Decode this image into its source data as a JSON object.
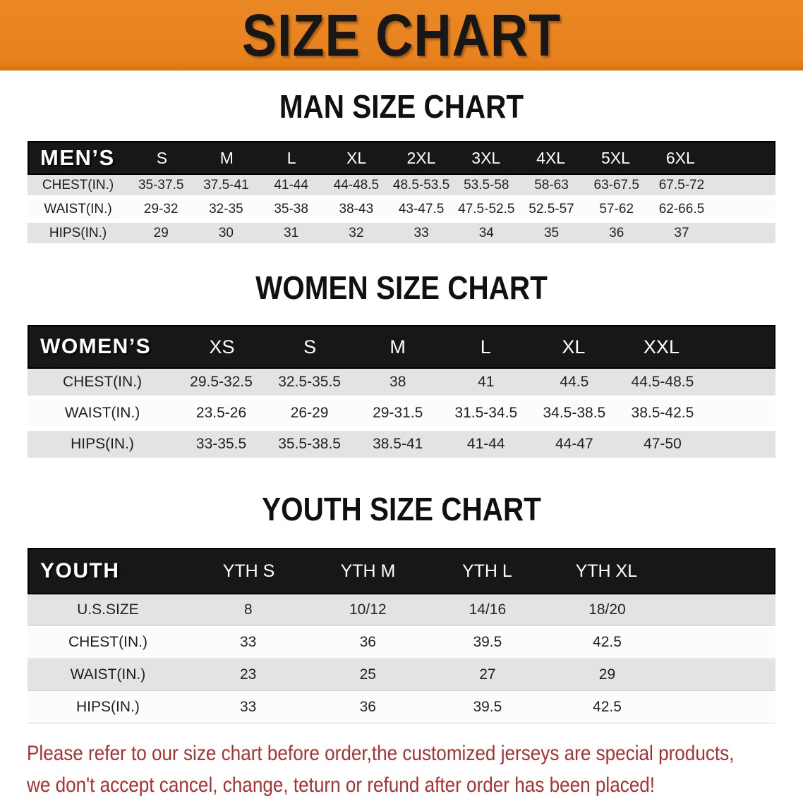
{
  "banner": {
    "title": "SIZE CHART",
    "bg_color": "#E8821F"
  },
  "sections": [
    {
      "title": "MAN SIZE CHART",
      "header_label": "MEN’S",
      "sizes": [
        "S",
        "M",
        "L",
        "XL",
        "2XL",
        "3XL",
        "4XL",
        "5XL",
        "6XL"
      ],
      "rows": [
        {
          "label": "CHEST(IN.)",
          "values": [
            "35-37.5",
            "37.5-41",
            "41-44",
            "44-48.5",
            "48.5-53.5",
            "53.5-58",
            "58-63",
            "63-67.5",
            "67.5-72"
          ]
        },
        {
          "label": "WAIST(IN.)",
          "values": [
            "29-32",
            "32-35",
            "35-38",
            "38-43",
            "43-47.5",
            "47.5-52.5",
            "52.5-57",
            "57-62",
            "62-66.5"
          ]
        },
        {
          "label": "HIPS(IN.)",
          "values": [
            "29",
            "30",
            "31",
            "32",
            "33",
            "34",
            "35",
            "36",
            "37"
          ]
        }
      ]
    },
    {
      "title": "WOMEN SIZE CHART",
      "header_label": "WOMEN’S",
      "sizes": [
        "XS",
        "S",
        "M",
        "L",
        "XL",
        "XXL"
      ],
      "rows": [
        {
          "label": "CHEST(IN.)",
          "values": [
            "29.5-32.5",
            "32.5-35.5",
            "38",
            "41",
            "44.5",
            "44.5-48.5"
          ]
        },
        {
          "label": "WAIST(IN.)",
          "values": [
            "23.5-26",
            "26-29",
            "29-31.5",
            "31.5-34.5",
            "34.5-38.5",
            "38.5-42.5"
          ]
        },
        {
          "label": "HIPS(IN.)",
          "values": [
            "33-35.5",
            "35.5-38.5",
            "38.5-41",
            "41-44",
            "44-47",
            "47-50"
          ]
        }
      ]
    },
    {
      "title": "YOUTH SIZE CHART",
      "header_label": "YOUTH",
      "sizes": [
        "YTH S",
        "YTH M",
        "YTH L",
        "YTH XL"
      ],
      "rows": [
        {
          "label": "U.S.SIZE",
          "values": [
            "8",
            "10/12",
            "14/16",
            "18/20"
          ]
        },
        {
          "label": "CHEST(IN.)",
          "values": [
            "33",
            "36",
            "39.5",
            "42.5"
          ]
        },
        {
          "label": "WAIST(IN.)",
          "values": [
            "23",
            "25",
            "27",
            "29"
          ]
        },
        {
          "label": "HIPS(IN.)",
          "values": [
            "33",
            "36",
            "39.5",
            "42.5"
          ]
        }
      ]
    }
  ],
  "footer": {
    "line1": "Please refer to our size chart before order,the customized jerseys are special products,",
    "line2": "we don't accept cancel, change, teturn or refund after order has been placed!",
    "text_color": "#A93131"
  }
}
